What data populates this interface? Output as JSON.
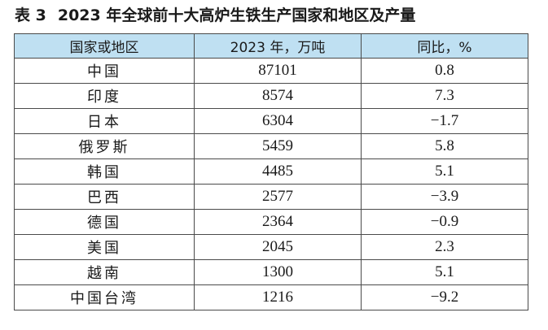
{
  "caption": {
    "table_number": "表 3",
    "title": "2023 年全球前十大高炉生铁生产国家和地区及产量"
  },
  "table": {
    "headers": [
      "国家或地区",
      "2023 年，万吨",
      "同比，%"
    ],
    "rows": [
      {
        "name": "中国",
        "output": "87101",
        "yoy": "0.8"
      },
      {
        "name": "印度",
        "output": "8574",
        "yoy": "7.3"
      },
      {
        "name": "日本",
        "output": "6304",
        "yoy": "−1.7"
      },
      {
        "name": "俄罗斯",
        "output": "5459",
        "yoy": "5.8"
      },
      {
        "name": "韩国",
        "output": "4485",
        "yoy": "5.1"
      },
      {
        "name": "巴西",
        "output": "2577",
        "yoy": "−3.9"
      },
      {
        "name": "德国",
        "output": "2364",
        "yoy": "−0.9"
      },
      {
        "name": "美国",
        "output": "2045",
        "yoy": "2.3"
      },
      {
        "name": "越南",
        "output": "1300",
        "yoy": "5.1"
      },
      {
        "name": "中国台湾",
        "output": "1216",
        "yoy": "−9.2"
      }
    ]
  },
  "colors": {
    "header_background": "#bfe0f2",
    "border": "#4a4a4a",
    "text": "#1a1a1a"
  }
}
